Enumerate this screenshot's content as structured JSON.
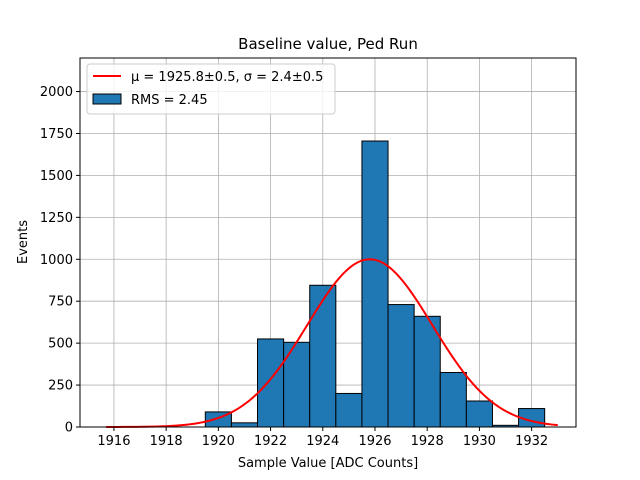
{
  "chart_data": {
    "type": "bar",
    "title": "Baseline value, Ped Run",
    "xlabel": "Sample Value [ADC Counts]",
    "ylabel": "Events",
    "xlim": [
      1914.7,
      1933.7
    ],
    "ylim": [
      0,
      2200
    ],
    "xticks": [
      1916,
      1918,
      1920,
      1922,
      1924,
      1926,
      1928,
      1930,
      1932
    ],
    "yticks": [
      0,
      250,
      500,
      750,
      1000,
      1250,
      1500,
      1750,
      2000
    ],
    "grid": true,
    "legend_position": "top-left",
    "bin_width": 1,
    "bins": [
      {
        "left": 1919.5,
        "value": 90
      },
      {
        "left": 1920.5,
        "value": 25
      },
      {
        "left": 1921.5,
        "value": 525
      },
      {
        "left": 1922.5,
        "value": 505
      },
      {
        "left": 1923.5,
        "value": 845
      },
      {
        "left": 1924.5,
        "value": 200
      },
      {
        "left": 1925.5,
        "value": 1705
      },
      {
        "left": 1926.5,
        "value": 730
      },
      {
        "left": 1927.5,
        "value": 660
      },
      {
        "left": 1928.5,
        "value": 325
      },
      {
        "left": 1929.5,
        "value": 155
      },
      {
        "left": 1930.5,
        "value": 10
      },
      {
        "left": 1931.5,
        "value": 110
      }
    ],
    "fit": {
      "type": "gaussian",
      "mean": 1925.8,
      "sigma": 2.4,
      "amplitude": 1000,
      "x_range": [
        1915.7,
        1933.0
      ]
    },
    "legend": [
      {
        "label": "μ = 1925.8±0.5, σ = 2.4±0.5",
        "kind": "line"
      },
      {
        "label": "RMS = 2.45",
        "kind": "patch"
      }
    ],
    "colors": {
      "bar_fill": "#1f77b4",
      "bar_edge": "#000000",
      "fit_line": "#ff0000",
      "grid": "#b0b0b0"
    }
  }
}
